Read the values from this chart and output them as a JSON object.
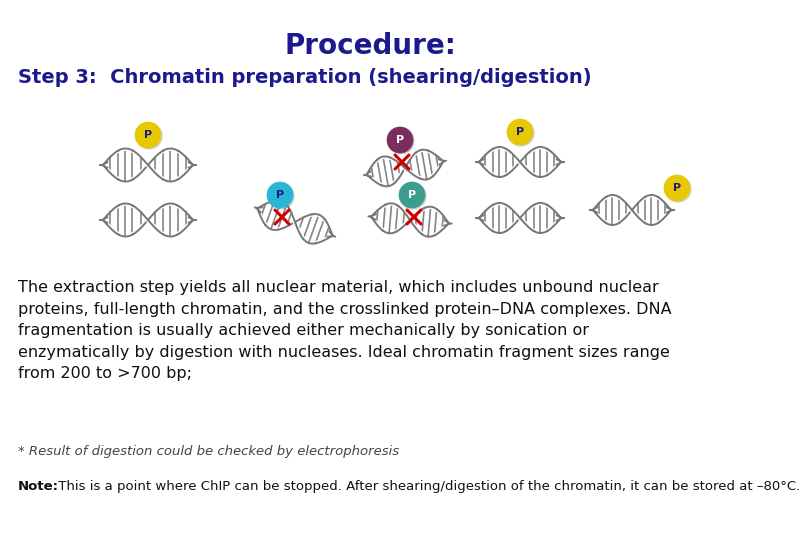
{
  "background_color": "#ffffff",
  "title": "Procedure:",
  "title_color": "#1a1a8c",
  "title_fontsize": 20,
  "subtitle": "Step 3:  Chromatin preparation (shearing/digestion)",
  "subtitle_color": "#1a1a8c",
  "subtitle_fontsize": 14,
  "body_text": "The extraction step yields all nuclear material, which includes unbound nuclear\nproteins, full-length chromatin, and the crosslinked protein–DNA complexes. DNA\nfragmentation is usually achieved either mechanically by sonication or\nenzymatically by digestion with nucleases. Ideal chromatin fragment sizes range\nfrom 200 to >700 bp;",
  "body_color": "#111111",
  "body_fontsize": 11.5,
  "note_star_text": "* Result of digestion could be checked by electrophoresis",
  "note_star_color": "#444444",
  "note_star_fontsize": 9.5,
  "note_bold_label": "Note:",
  "note_text": " This is a point where ChIP can be stopped. After shearing/digestion of the chromatin, it can be stored at –80°C.",
  "note_color": "#111111",
  "note_fontsize": 9.5,
  "dna_color": "#777777",
  "crosslink_color": "#cc0000",
  "protein_yellow": "#e8c800",
  "protein_blue": "#29b6d4",
  "protein_dark": "#7b2d5e",
  "protein_teal": "#3a9e8c"
}
